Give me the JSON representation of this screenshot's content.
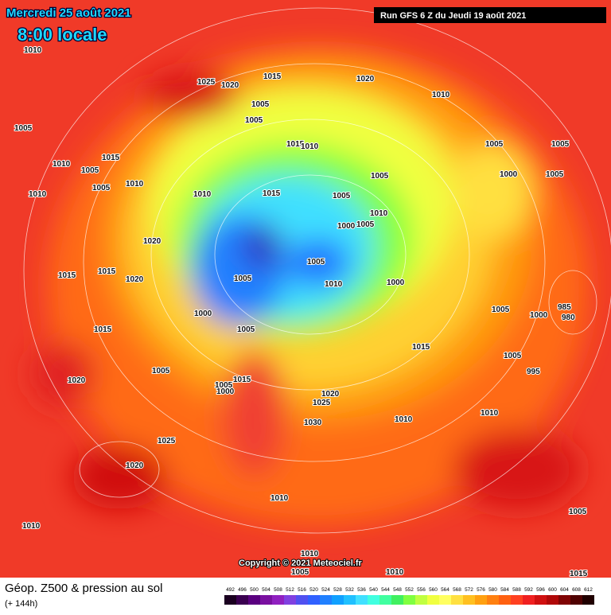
{
  "header": {
    "date": "Mercredi 25 août 2021",
    "time": "8:00 locale",
    "run": "Run GFS 6 Z du Jeudi 19 août 2021"
  },
  "map": {
    "isobar_labels": [
      1010,
      1025,
      1020,
      1015,
      1020,
      1010,
      1005,
      1005,
      1005,
      1015,
      1010,
      1005,
      1005,
      1010,
      1010,
      1010,
      1015,
      1015,
      1010,
      1005,
      1005,
      1005,
      1005,
      1000,
      1005,
      1010,
      1000,
      1005,
      1020,
      1015,
      1020,
      1015,
      1005,
      1005,
      1000,
      1010,
      1000,
      1005,
      1015,
      1005,
      1000,
      985,
      980,
      1005,
      1015,
      995,
      1005,
      1020,
      1015,
      1005,
      1000,
      1025,
      1020,
      1030,
      1010,
      1010,
      1025,
      1020,
      1010,
      1010,
      1005,
      1010,
      1005,
      1010,
      1015
    ],
    "copyright": "Copyright © 2021 Meteociel.fr"
  },
  "footer": {
    "title": "Géop. Z500 & pression au sol",
    "lead": "(+ 144h)"
  },
  "legend": {
    "labels": [
      492,
      496,
      500,
      504,
      508,
      512,
      516,
      520,
      524,
      528,
      532,
      536,
      540,
      544,
      548,
      552,
      556,
      560,
      564,
      568,
      572,
      576,
      580,
      584,
      588,
      592,
      596,
      600,
      604,
      608,
      612
    ],
    "colors": [
      "#1a0020",
      "#3a0050",
      "#5a0080",
      "#7a10a0",
      "#9020c0",
      "#8040e0",
      "#5050f0",
      "#3060ff",
      "#2080ff",
      "#10a0ff",
      "#20c0ff",
      "#40e0ff",
      "#40ffe0",
      "#40ffa0",
      "#40f060",
      "#80ff40",
      "#c0ff40",
      "#f0ff40",
      "#ffff60",
      "#ffe040",
      "#ffc020",
      "#ffa010",
      "#ff8010",
      "#ff6010",
      "#ff4020",
      "#f02020",
      "#d01010",
      "#b00808",
      "#800404",
      "#500202",
      "#200000"
    ]
  }
}
